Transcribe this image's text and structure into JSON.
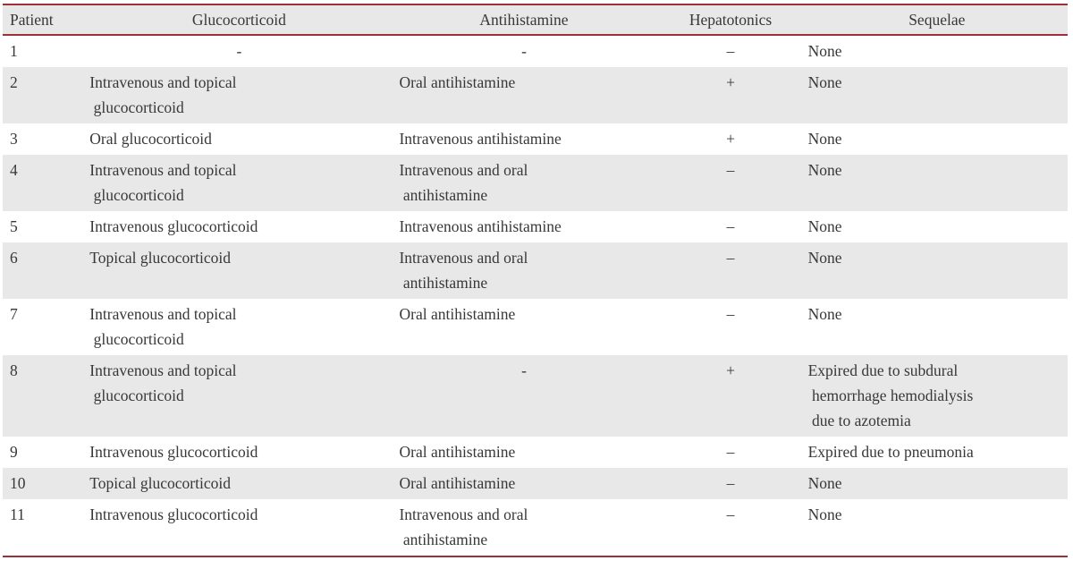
{
  "colors": {
    "accent_line": "#9e3039",
    "row_stripe": "#e9e8e8",
    "text": "#383838",
    "background": "#ffffff"
  },
  "table": {
    "columns": [
      {
        "key": "patient",
        "label": "Patient"
      },
      {
        "key": "glucocorticoid",
        "label": "Glucocorticoid"
      },
      {
        "key": "antihistamine",
        "label": "Antihistamine"
      },
      {
        "key": "hepatotonics",
        "label": "Hepatotonics"
      },
      {
        "key": "sequelae",
        "label": "Sequelae"
      }
    ],
    "rows": [
      {
        "patient": "1",
        "glucocorticoid": "-",
        "antihistamine": "-",
        "hepatotonics": "–",
        "sequelae": "None"
      },
      {
        "patient": "2",
        "glucocorticoid": "Intravenous and topical\n glucocorticoid",
        "antihistamine": "Oral antihistamine",
        "hepatotonics": "+",
        "sequelae": "None"
      },
      {
        "patient": "3",
        "glucocorticoid": "Oral glucocorticoid",
        "antihistamine": "Intravenous antihistamine",
        "hepatotonics": "+",
        "sequelae": "None"
      },
      {
        "patient": "4",
        "glucocorticoid": "Intravenous and topical\n glucocorticoid",
        "antihistamine": "Intravenous and oral\n antihistamine",
        "hepatotonics": "–",
        "sequelae": "None"
      },
      {
        "patient": "5",
        "glucocorticoid": "Intravenous glucocorticoid",
        "antihistamine": "Intravenous antihistamine",
        "hepatotonics": "–",
        "sequelae": "None"
      },
      {
        "patient": "6",
        "glucocorticoid": "Topical glucocorticoid",
        "antihistamine": "Intravenous and oral\n antihistamine",
        "hepatotonics": "–",
        "sequelae": "None"
      },
      {
        "patient": "7",
        "glucocorticoid": "Intravenous and topical\n glucocorticoid",
        "antihistamine": "Oral antihistamine",
        "hepatotonics": "–",
        "sequelae": "None"
      },
      {
        "patient": "8",
        "glucocorticoid": "Intravenous and topical\n glucocorticoid",
        "antihistamine": "-",
        "hepatotonics": "+",
        "sequelae": "Expired due to subdural\n hemorrhage hemodialysis\n due to azotemia"
      },
      {
        "patient": "9",
        "glucocorticoid": "Intravenous glucocorticoid",
        "antihistamine": "Oral antihistamine",
        "hepatotonics": "–",
        "sequelae": "Expired due to pneumonia"
      },
      {
        "patient": "10",
        "glucocorticoid": "Topical glucocorticoid",
        "antihistamine": "Oral antihistamine",
        "hepatotonics": "–",
        "sequelae": "None"
      },
      {
        "patient": "11",
        "glucocorticoid": "Intravenous glucocorticoid",
        "antihistamine": "Intravenous and oral\n antihistamine",
        "hepatotonics": "–",
        "sequelae": "None"
      }
    ]
  }
}
